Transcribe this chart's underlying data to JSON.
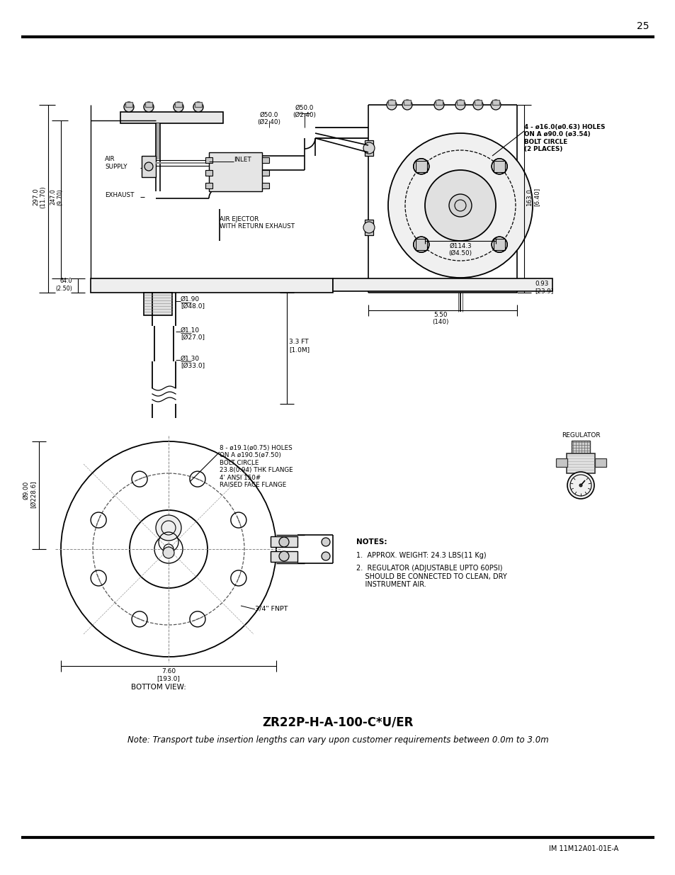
{
  "bg_color": "#ffffff",
  "line_color": "#000000",
  "page_number": "25",
  "footer_text": "IM 11M12A01-01E-A",
  "title": "ZR22P-H-A-100-C*U/ER",
  "subtitle": "Note: Transport tube insertion lengths can vary upon customer requirements between 0.0m to 3.0m",
  "gray_light": "#c8c8c8",
  "gray_mid": "#999999",
  "gray_dark": "#666666"
}
